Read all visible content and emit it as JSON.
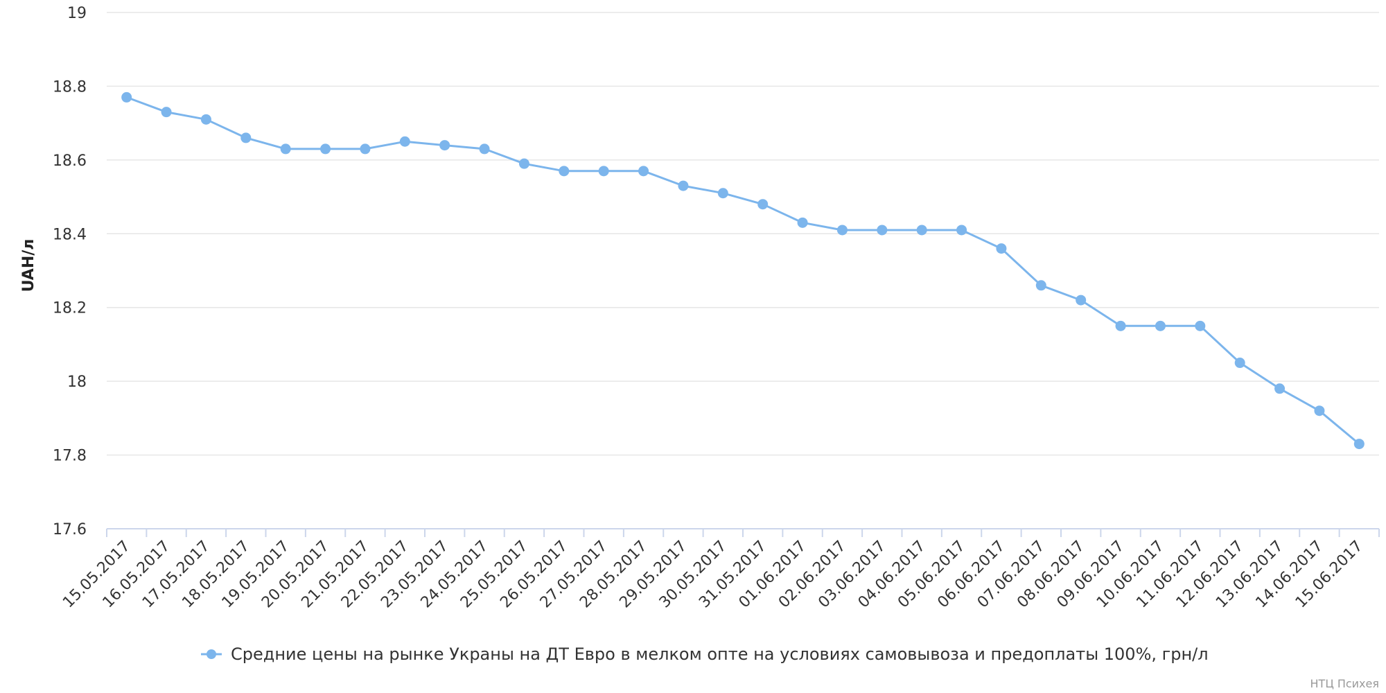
{
  "chart_data": {
    "type": "line",
    "ylabel": "UAH/л",
    "xlabel": "",
    "ylim": [
      17.6,
      19
    ],
    "yticks": [
      17.6,
      17.8,
      18,
      18.2,
      18.4,
      18.6,
      18.8,
      19
    ],
    "grid": true,
    "legend_position": "bottom",
    "categories": [
      "15.05.2017",
      "16.05.2017",
      "17.05.2017",
      "18.05.2017",
      "19.05.2017",
      "20.05.2017",
      "21.05.2017",
      "22.05.2017",
      "23.05.2017",
      "24.05.2017",
      "25.05.2017",
      "26.05.2017",
      "27.05.2017",
      "28.05.2017",
      "29.05.2017",
      "30.05.2017",
      "31.05.2017",
      "01.06.2017",
      "02.06.2017",
      "03.06.2017",
      "04.06.2017",
      "05.06.2017",
      "06.06.2017",
      "07.06.2017",
      "08.06.2017",
      "09.06.2017",
      "10.06.2017",
      "11.06.2017",
      "12.06.2017",
      "13.06.2017",
      "14.06.2017",
      "15.06.2017"
    ],
    "series": [
      {
        "name": "Средние цены на рынке Украны на ДТ Евро в мелком опте на условиях самовывоза и предоплаты 100%, грн/л",
        "color": "#7cb5ec",
        "values": [
          18.77,
          18.73,
          18.71,
          18.66,
          18.63,
          18.63,
          18.63,
          18.65,
          18.64,
          18.63,
          18.59,
          18.57,
          18.57,
          18.57,
          18.53,
          18.51,
          18.48,
          18.43,
          18.41,
          18.41,
          18.41,
          18.41,
          18.36,
          18.26,
          18.22,
          18.15,
          18.15,
          18.15,
          18.05,
          17.98,
          17.92,
          17.83
        ]
      }
    ]
  },
  "credit": "НТЦ Психея"
}
